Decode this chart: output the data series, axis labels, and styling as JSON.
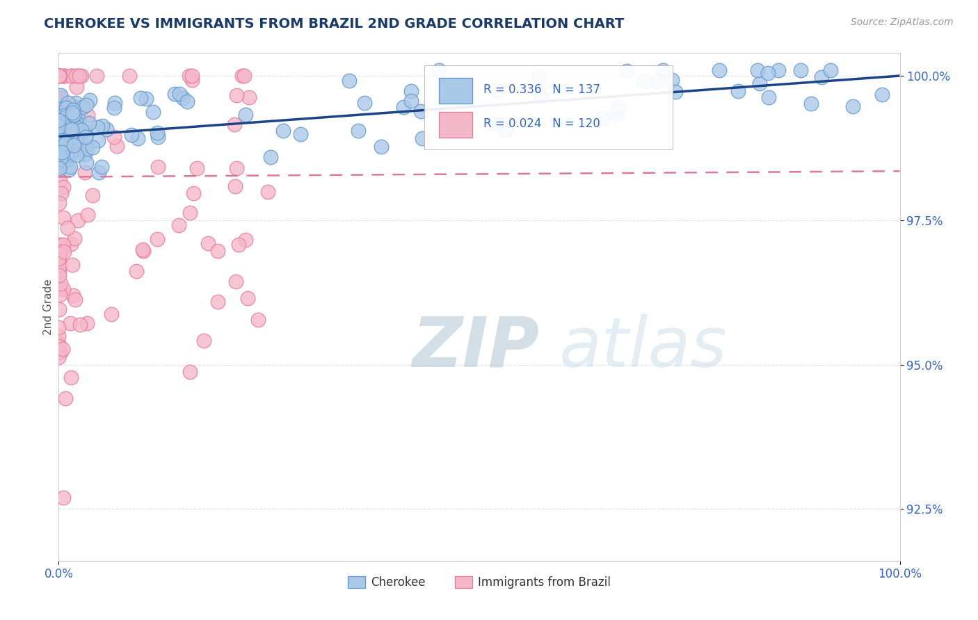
{
  "title": "CHEROKEE VS IMMIGRANTS FROM BRAZIL 2ND GRADE CORRELATION CHART",
  "source_text": "Source: ZipAtlas.com",
  "ylabel": "2nd Grade",
  "xlim": [
    0.0,
    1.0
  ],
  "ylim": [
    0.916,
    1.004
  ],
  "yticks": [
    0.925,
    0.95,
    0.975,
    1.0
  ],
  "ytick_labels": [
    "92.5%",
    "95.0%",
    "97.5%",
    "100.0%"
  ],
  "xtick_labels": [
    "0.0%",
    "100.0%"
  ],
  "legend_blue_label": "Cherokee",
  "legend_pink_label": "Immigrants from Brazil",
  "R_blue": 0.336,
  "N_blue": 137,
  "R_pink": 0.024,
  "N_pink": 120,
  "blue_color": "#aac8e8",
  "blue_edge": "#6699cc",
  "pink_color": "#f5b8c8",
  "pink_edge": "#e87ca0",
  "blue_line_color": "#1a4488",
  "pink_line_color": "#dd7799",
  "background_color": "#ffffff",
  "grid_color": "#ddddee",
  "title_color": "#1a3a6b",
  "watermark_color": "#d0dff0",
  "watermark_color2": "#c8d8e8",
  "seed": 12345
}
